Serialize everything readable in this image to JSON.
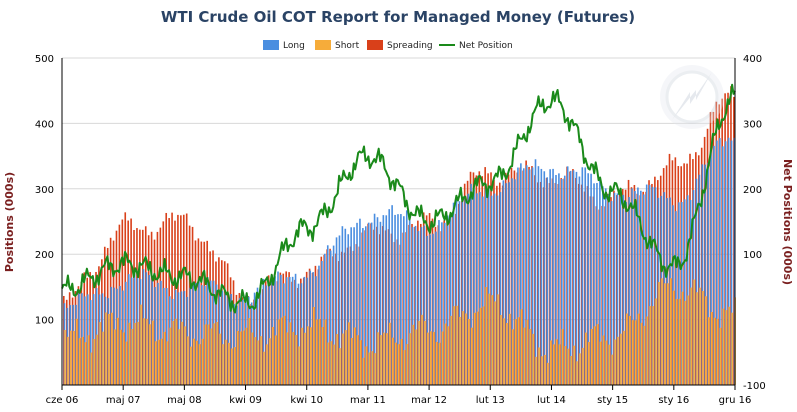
{
  "chart_data": {
    "type": "bar",
    "title": "WTI Crude Oil COT Report for Managed Money (Futures)",
    "ylabel": "Positions (000s)",
    "y2label": "Net Positions (000s)",
    "ylim": [
      0,
      500
    ],
    "y2lim": [
      -100,
      400
    ],
    "yticks": [
      100,
      200,
      300,
      400,
      500
    ],
    "y2ticks": [
      -100,
      100,
      200,
      300,
      400
    ],
    "grid": true,
    "legend_position": "top-center",
    "x_tick_labels": [
      "cze 06",
      "maj 07",
      "maj 08",
      "kwi 09",
      "kwi 10",
      "mar 11",
      "mar 12",
      "lut 13",
      "lut 14",
      "sty 15",
      "sty 16",
      "gru 16"
    ],
    "x": [
      "cze 06",
      "maj 07",
      "maj 08",
      "kwi 09",
      "kwi 10",
      "mar 11",
      "mar 12",
      "lut 13",
      "lut 14",
      "sty 15",
      "sty 16",
      "gru 16"
    ],
    "series": [
      {
        "name": "Long",
        "color": "#4a8ee0",
        "values": [
          115,
          160,
          150,
          140,
          175,
          260,
          245,
          305,
          335,
          300,
          285,
          375
        ]
      },
      {
        "name": "Short",
        "color": "#f6ac3a",
        "values": [
          70,
          95,
          80,
          75,
          90,
          65,
          85,
          125,
          55,
          75,
          150,
          105
        ]
      },
      {
        "name": "Spreading",
        "color": "#d9401a",
        "values": [
          125,
          240,
          250,
          140,
          175,
          230,
          245,
          325,
          320,
          285,
          330,
          440
        ]
      },
      {
        "name": "Net Position",
        "color": "#1a8a1a",
        "axis": "right",
        "values": [
          45,
          85,
          65,
          25,
          140,
          250,
          150,
          210,
          335,
          195,
          80,
          340
        ]
      }
    ]
  }
}
